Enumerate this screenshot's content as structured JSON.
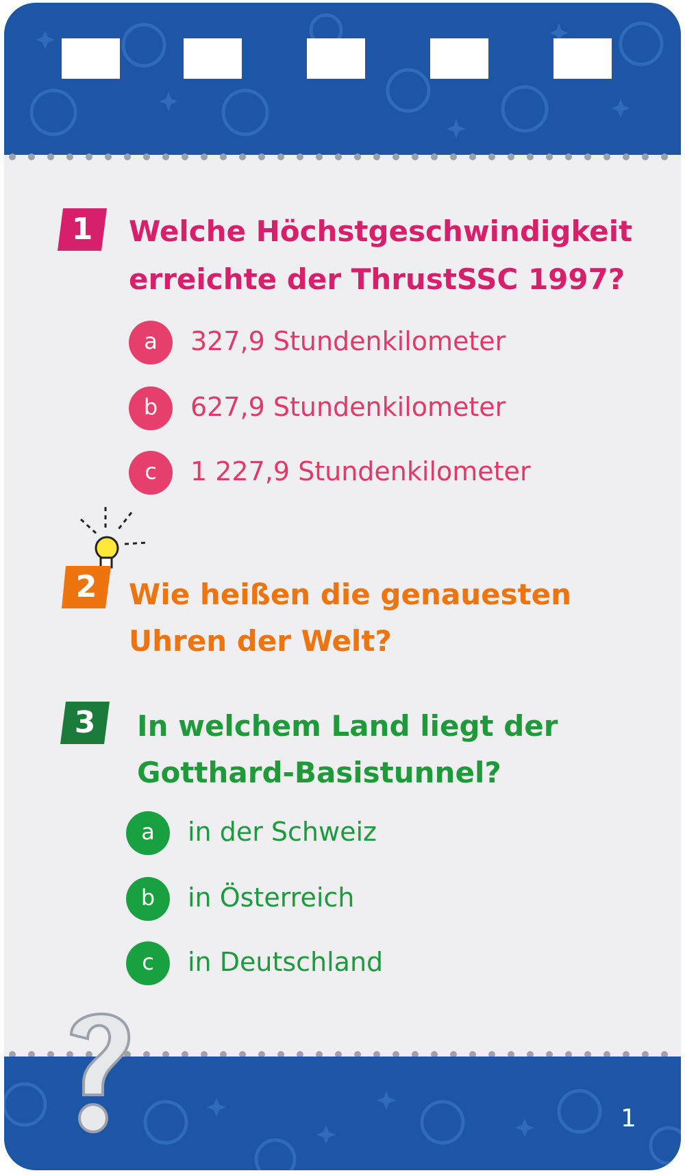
{
  "card": {
    "colors": {
      "band": "#1c56a4",
      "card_bg": "#efeff1",
      "pink": "#d71f6b",
      "orange": "#ee7410",
      "green": "#1f9a3b"
    },
    "page_number": "1"
  },
  "questions": [
    {
      "number": "1",
      "lines": [
        "Welche Höchstgeschwindigkeit",
        "erreichte der ThrustSSC 1997?"
      ],
      "answers": [
        {
          "letter": "a",
          "text": "327,9 Stundenkilometer"
        },
        {
          "letter": "b",
          "text": "627,9 Stundenkilometer"
        },
        {
          "letter": "c",
          "text": "1 227,9 Stundenkilometer"
        }
      ]
    },
    {
      "number": "2",
      "icon": "lightbulb-icon",
      "lines": [
        "Wie heißen die genauesten",
        "Uhren der Welt?"
      ]
    },
    {
      "number": "3",
      "lines": [
        "In welchem Land liegt der",
        "Gotthard-Basistunnel?"
      ],
      "answers": [
        {
          "letter": "a",
          "text": "in der Schweiz"
        },
        {
          "letter": "b",
          "text": "in Österreich"
        },
        {
          "letter": "c",
          "text": "in Deutschland"
        }
      ]
    }
  ]
}
